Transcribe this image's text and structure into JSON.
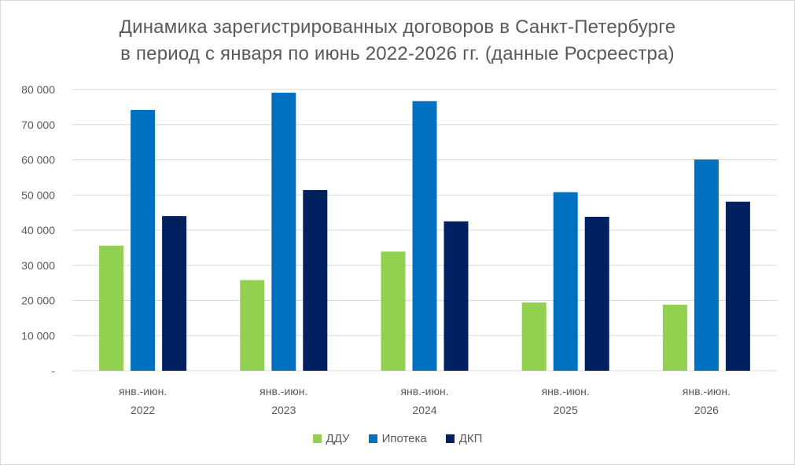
{
  "chart_data": {
    "type": "bar",
    "title_line1": "Динамика зарегистрированных договоров в Санкт-Петербурге",
    "title_line2": "в период с января по июнь 2022-2026 гг. (данные Росреестра)",
    "categories": [
      [
        "янв.-июн.",
        "2022"
      ],
      [
        "янв.-июн.",
        "2023"
      ],
      [
        "янв.-июн.",
        "2024"
      ],
      [
        "янв.-июн.",
        "2025"
      ],
      [
        "янв.-июн.",
        "2026"
      ]
    ],
    "series": [
      {
        "name": "ДДУ",
        "color": "#92d050",
        "values": [
          35600,
          25800,
          33900,
          19400,
          18800
        ]
      },
      {
        "name": "Ипотека",
        "color": "#0070c0",
        "values": [
          74200,
          79100,
          76700,
          50800,
          60100
        ]
      },
      {
        "name": "ДКП",
        "color": "#002060",
        "values": [
          44000,
          51400,
          42500,
          43800,
          48100
        ]
      }
    ],
    "ylim": [
      0,
      80000
    ],
    "yticks": [
      {
        "value": 80000,
        "label": "80 000"
      },
      {
        "value": 70000,
        "label": "70 000"
      },
      {
        "value": 60000,
        "label": "60 000"
      },
      {
        "value": 50000,
        "label": "50 000"
      },
      {
        "value": 40000,
        "label": "40 000"
      },
      {
        "value": 30000,
        "label": "30 000"
      },
      {
        "value": 20000,
        "label": "20 000"
      },
      {
        "value": 10000,
        "label": "10 000"
      },
      {
        "value": 0,
        "label": "-"
      }
    ],
    "grid": true,
    "legend_position": "bottom",
    "gridline_color": "#d9d9d9"
  }
}
